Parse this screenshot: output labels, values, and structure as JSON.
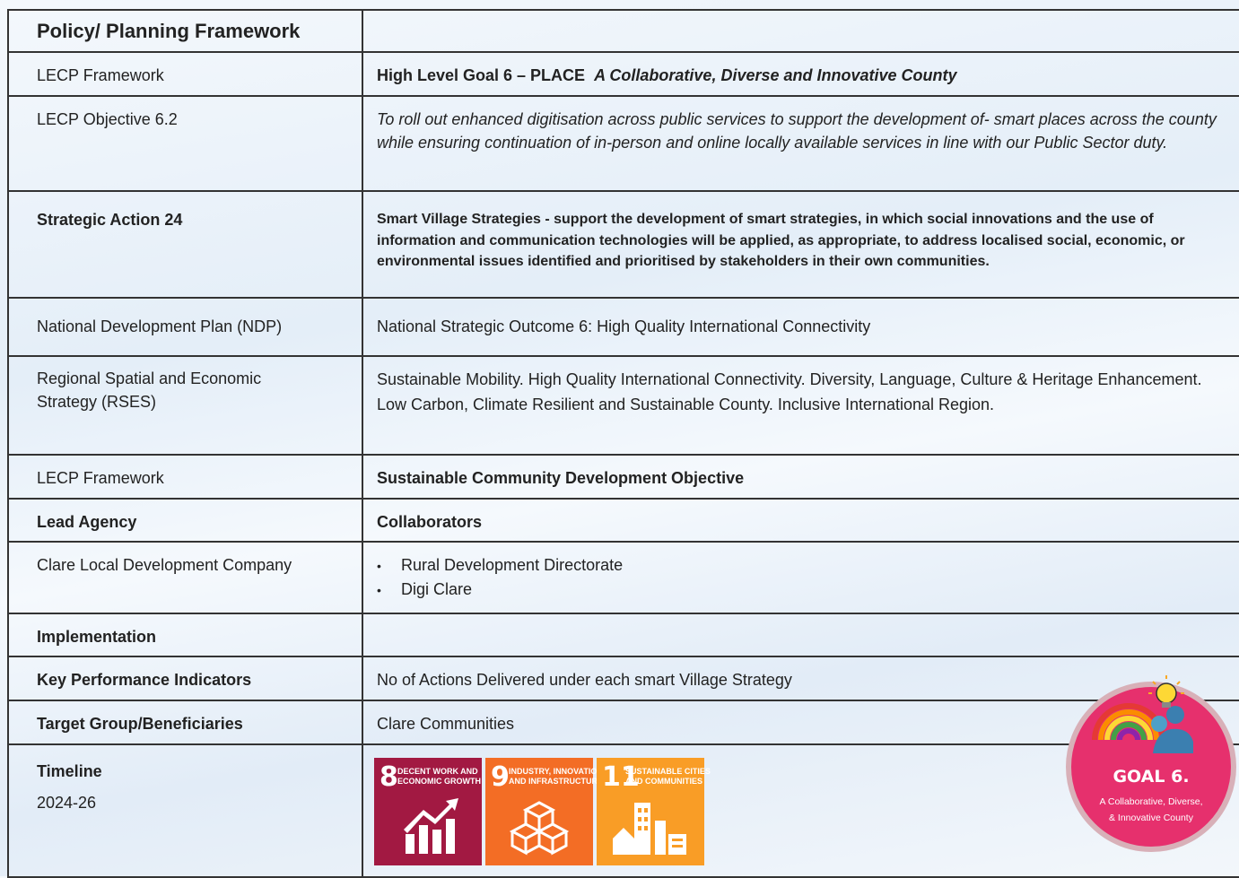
{
  "table": {
    "rows": [
      {
        "label": "Policy/ Planning Framework"
      },
      {
        "label": "LECP Framework",
        "text": "High Level Goal 6 – PLACE",
        "emphasis": "A Collaborative, Diverse and Innovative County"
      },
      {
        "label": "LECP Objective 6.2",
        "text": "To roll out enhanced digitisation across public services to support the development of- smart places across the county while ensuring continuation of in-person and online locally available services in line with our Public Sector duty."
      },
      {
        "label": "Strategic Action 24",
        "text": "Smart Village Strategies - support the development of smart strategies, in which social innovations and the use of information and communication technologies will be applied, as appropriate, to address localised social, economic, or environmental issues identified and prioritised by stakeholders in their own communities."
      },
      {
        "label": "National Development Plan (NDP)",
        "text": "National Strategic Outcome 6: High Quality International Connectivity"
      },
      {
        "label": "Regional Spatial and Economic Strategy (RSES)",
        "paragraphs": [
          "Sustainable Mobility. High Quality International Connectivity. Diversity, Language, Culture & Heritage Enhancement.",
          "Low Carbon, Climate Resilient and Sustainable County. Inclusive International Region."
        ]
      },
      {
        "label": "LECP Framework",
        "text": "Sustainable Community Development Objective"
      },
      {
        "label": "Lead Agency",
        "text": "Collaborators"
      },
      {
        "label": "Clare Local Development Company",
        "bullets": [
          "Rural Development Directorate",
          "Digi Clare"
        ]
      },
      {
        "label": "Implementation"
      },
      {
        "label": "Key Performance Indicators",
        "text": "No of Actions Delivered under each smart Village Strategy"
      },
      {
        "label": "Target Group/Beneficiaries",
        "text": "Clare Communities"
      },
      {
        "label": "Timeline",
        "sub": "2024-26",
        "sdgs": [
          {
            "number": 8,
            "lines": [
              "DECENT WORK AND",
              "ECONOMIC GROWTH"
            ]
          },
          {
            "number": 9,
            "lines": [
              "INDUSTRY, INNOVATION",
              "AND INFRASTRUCTURE"
            ]
          },
          {
            "number": 11,
            "lines": [
              "SUSTAINABLE CITIES",
              "AND COMMUNITIES"
            ]
          }
        ]
      }
    ]
  },
  "badge": {
    "title": "GOAL 6.",
    "lines": [
      "A Collaborative, Diverse,",
      "& Innovative County"
    ]
  }
}
